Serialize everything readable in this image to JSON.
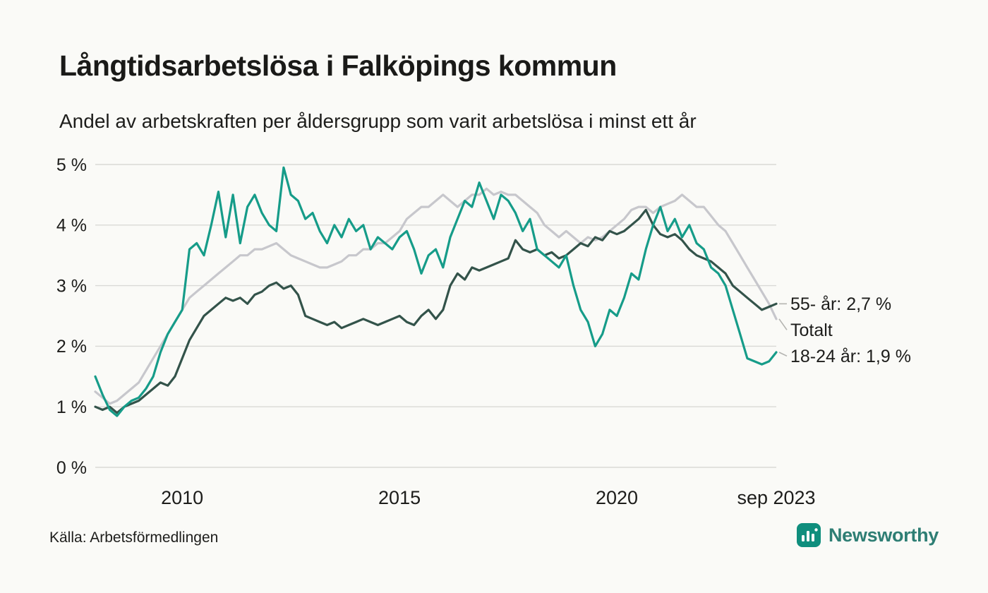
{
  "header": {
    "title": "Långtidsarbetslösa i Falköpings kommun",
    "subtitle": "Andel av arbetskraften per åldersgrupp som varit arbetslösa i minst ett år"
  },
  "footer": {
    "source": "Källa: Arbetsförmedlingen",
    "brand": "Newsworthy"
  },
  "colors": {
    "background": "#fafaf7",
    "grid": "#d9d9d6",
    "text": "#1d1d1b",
    "leader": "#b3b3b0",
    "brand_teal": "#0f8e7d"
  },
  "chart_data": {
    "type": "line",
    "title": "Långtidsarbetslösa i Falköpings kommun",
    "subtitle": "Andel av arbetskraften per åldersgrupp som varit arbetslösa i minst ett år",
    "xlabel": "",
    "ylabel": "",
    "ylim": [
      0,
      5
    ],
    "grid": "horizontal",
    "legend_position": "right-end-labels",
    "x_range": [
      2008.0,
      2023.67
    ],
    "x_ticks": [
      {
        "value": 2010,
        "label": "2010"
      },
      {
        "value": 2015,
        "label": "2015"
      },
      {
        "value": 2020,
        "label": "2020"
      },
      {
        "value": 2023.67,
        "label": "sep 2023"
      }
    ],
    "y_ticks": [
      {
        "value": 0,
        "label": "0 %"
      },
      {
        "value": 1,
        "label": "1 %"
      },
      {
        "value": 2,
        "label": "2 %"
      },
      {
        "value": 3,
        "label": "3 %"
      },
      {
        "value": 4,
        "label": "4 %"
      },
      {
        "value": 5,
        "label": "5 %"
      }
    ],
    "series": [
      {
        "name": "Totalt",
        "end_label": "Totalt",
        "end_value": 2.45,
        "color": "#c7c7cc",
        "values": [
          1.25,
          1.15,
          1.05,
          1.1,
          1.2,
          1.3,
          1.4,
          1.6,
          1.8,
          2.0,
          2.2,
          2.4,
          2.6,
          2.8,
          2.9,
          3.0,
          3.1,
          3.2,
          3.3,
          3.4,
          3.5,
          3.5,
          3.6,
          3.6,
          3.65,
          3.7,
          3.6,
          3.5,
          3.45,
          3.4,
          3.35,
          3.3,
          3.3,
          3.35,
          3.4,
          3.5,
          3.5,
          3.6,
          3.6,
          3.7,
          3.7,
          3.8,
          3.9,
          4.1,
          4.2,
          4.3,
          4.3,
          4.4,
          4.5,
          4.4,
          4.3,
          4.4,
          4.5,
          4.5,
          4.6,
          4.5,
          4.55,
          4.5,
          4.5,
          4.4,
          4.3,
          4.2,
          4.0,
          3.9,
          3.8,
          3.9,
          3.8,
          3.7,
          3.8,
          3.75,
          3.8,
          3.9,
          4.0,
          4.1,
          4.25,
          4.3,
          4.3,
          4.2,
          4.3,
          4.35,
          4.4,
          4.5,
          4.4,
          4.3,
          4.3,
          4.15,
          4.0,
          3.9,
          3.7,
          3.5,
          3.3,
          3.1,
          2.9,
          2.7,
          2.45
        ]
      },
      {
        "name": "55- år",
        "end_label": "55- år: 2,7 %",
        "end_value": 2.7,
        "color": "#33534a",
        "values": [
          1.0,
          0.95,
          1.0,
          0.9,
          1.0,
          1.05,
          1.1,
          1.2,
          1.3,
          1.4,
          1.35,
          1.5,
          1.8,
          2.1,
          2.3,
          2.5,
          2.6,
          2.7,
          2.8,
          2.75,
          2.8,
          2.7,
          2.85,
          2.9,
          3.0,
          3.05,
          2.95,
          3.0,
          2.85,
          2.5,
          2.45,
          2.4,
          2.35,
          2.4,
          2.3,
          2.35,
          2.4,
          2.45,
          2.4,
          2.35,
          2.4,
          2.45,
          2.5,
          2.4,
          2.35,
          2.5,
          2.6,
          2.45,
          2.6,
          3.0,
          3.2,
          3.1,
          3.3,
          3.25,
          3.3,
          3.35,
          3.4,
          3.45,
          3.75,
          3.6,
          3.55,
          3.6,
          3.5,
          3.55,
          3.45,
          3.5,
          3.6,
          3.7,
          3.65,
          3.8,
          3.75,
          3.9,
          3.85,
          3.9,
          4.0,
          4.1,
          4.25,
          4.0,
          3.85,
          3.8,
          3.85,
          3.75,
          3.6,
          3.5,
          3.45,
          3.4,
          3.3,
          3.2,
          3.0,
          2.9,
          2.8,
          2.7,
          2.6,
          2.65,
          2.7
        ]
      },
      {
        "name": "18-24 år",
        "end_label": "18-24 år: 1,9 %",
        "end_value": 1.9,
        "color": "#169c89",
        "values": [
          1.5,
          1.2,
          0.95,
          0.85,
          1.0,
          1.1,
          1.15,
          1.3,
          1.5,
          1.9,
          2.2,
          2.4,
          2.6,
          3.6,
          3.7,
          3.5,
          4.0,
          4.55,
          3.8,
          4.5,
          3.7,
          4.3,
          4.5,
          4.2,
          4.0,
          3.9,
          4.95,
          4.5,
          4.4,
          4.1,
          4.2,
          3.9,
          3.7,
          4.0,
          3.8,
          4.1,
          3.9,
          4.0,
          3.6,
          3.8,
          3.7,
          3.6,
          3.8,
          3.9,
          3.6,
          3.2,
          3.5,
          3.6,
          3.3,
          3.8,
          4.1,
          4.4,
          4.3,
          4.7,
          4.4,
          4.1,
          4.5,
          4.4,
          4.2,
          3.9,
          4.1,
          3.6,
          3.5,
          3.4,
          3.3,
          3.5,
          3.0,
          2.6,
          2.4,
          2.0,
          2.2,
          2.6,
          2.5,
          2.8,
          3.2,
          3.1,
          3.6,
          4.0,
          4.3,
          3.9,
          4.1,
          3.8,
          4.0,
          3.7,
          3.6,
          3.3,
          3.2,
          3.0,
          2.6,
          2.2,
          1.8,
          1.75,
          1.7,
          1.75,
          1.9
        ]
      }
    ]
  }
}
